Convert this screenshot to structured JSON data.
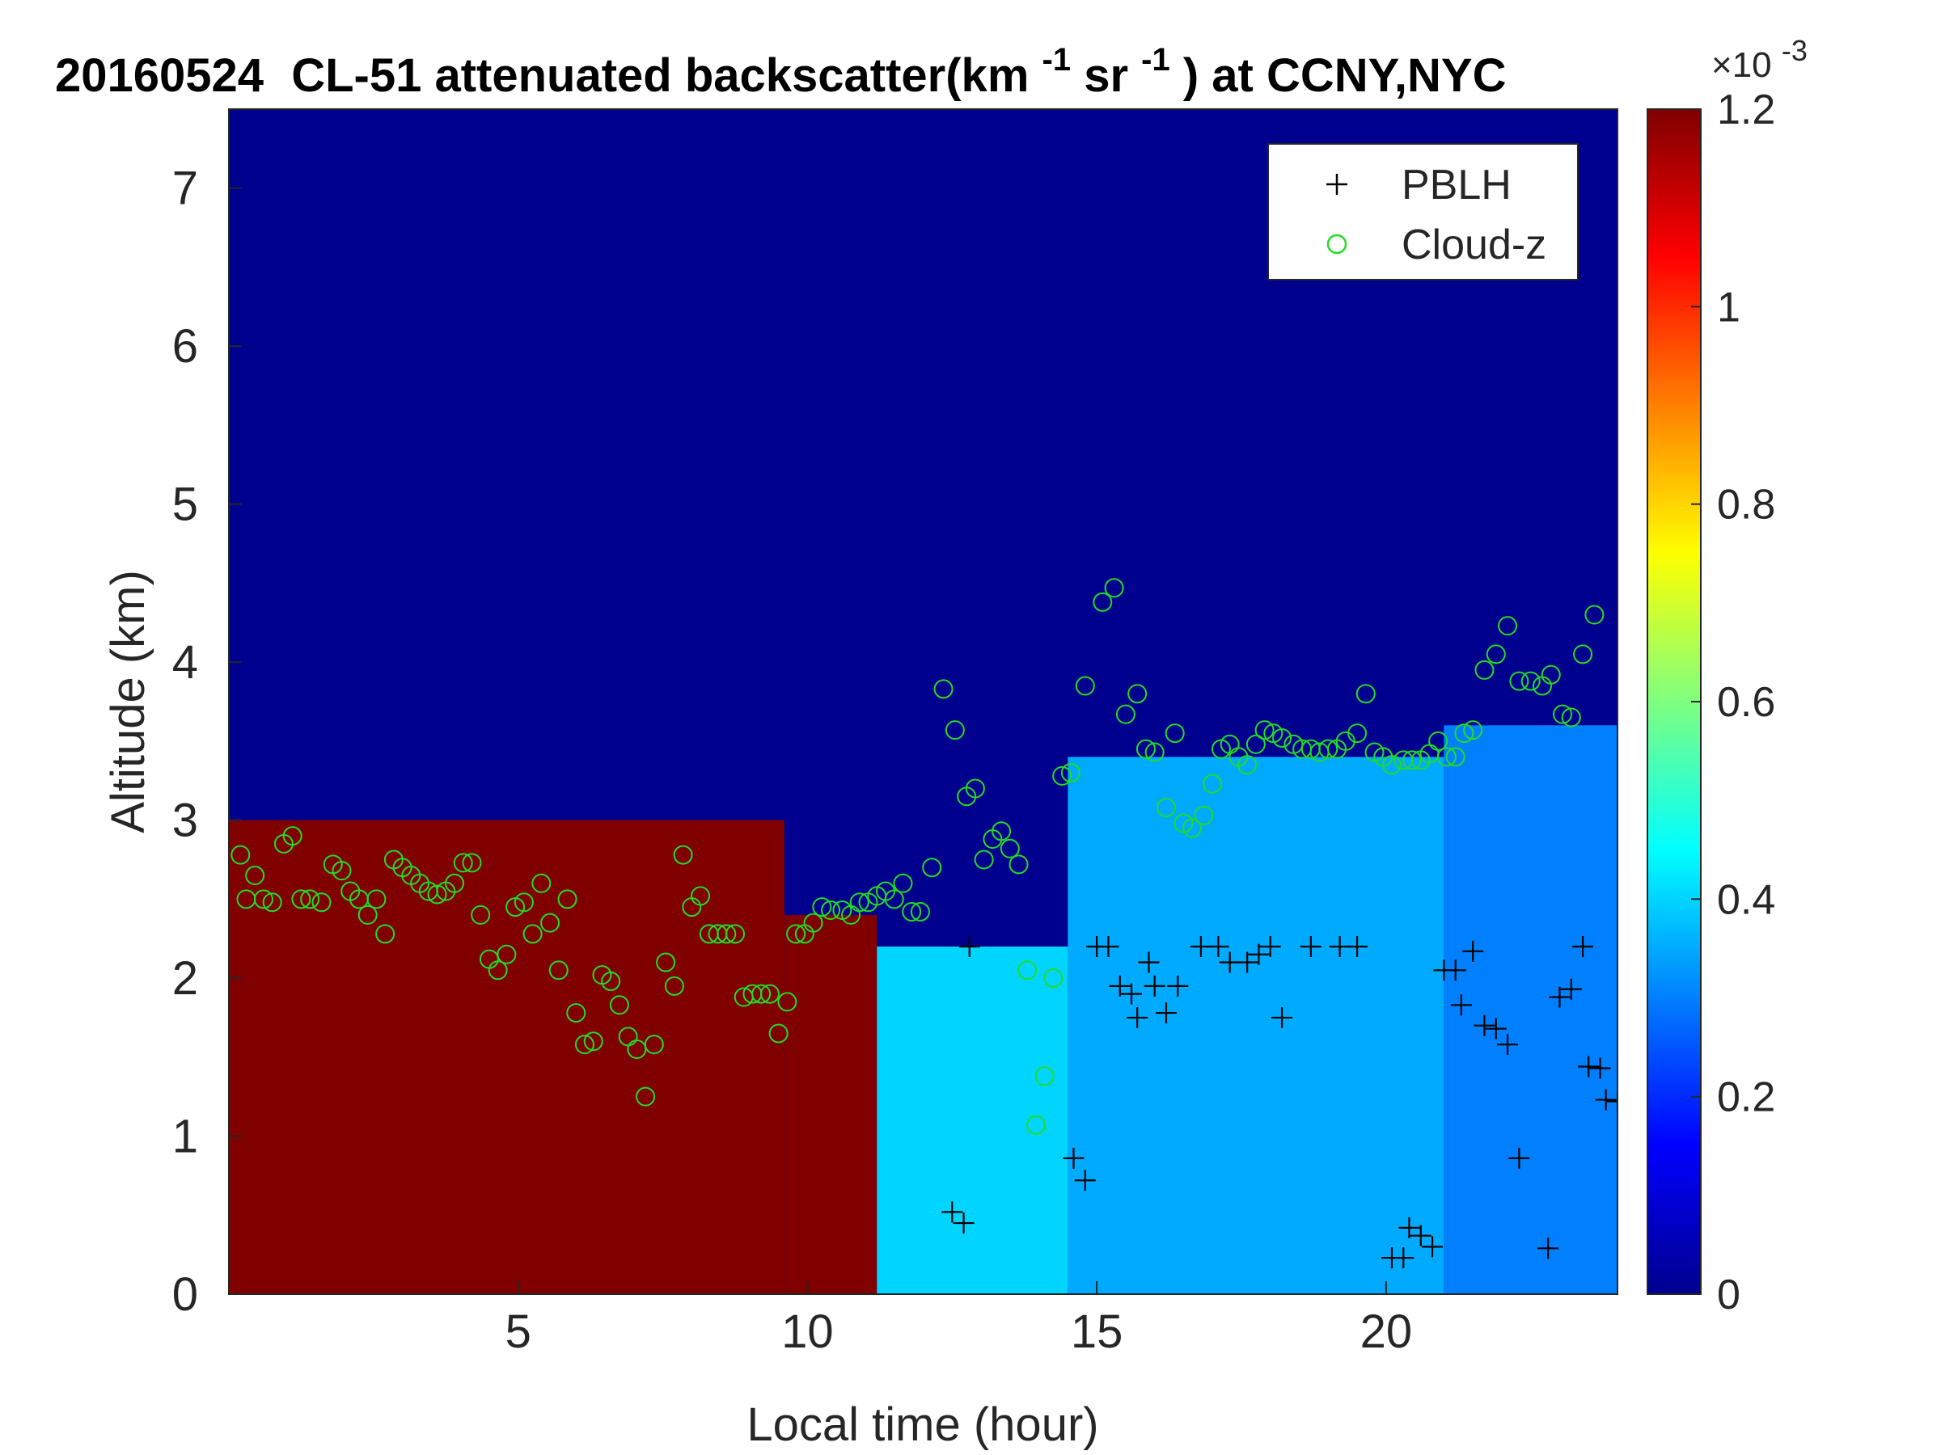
{
  "chart_data": {
    "type": "heatmap",
    "title": {
      "date": "20160524",
      "main": "CL-51 attenuated backscatter(km",
      "sup1": "-1",
      "mid": "sr",
      "sup2": "-1",
      "end": ") at CCNY,NYC"
    },
    "xlabel": "Local time (hour)",
    "ylabel": "Altitude (km)",
    "xlim": [
      0,
      24
    ],
    "ylim": [
      0,
      7.5
    ],
    "xticks": [
      5,
      10,
      15,
      20
    ],
    "yticks": [
      0,
      1,
      2,
      3,
      4,
      5,
      6,
      7
    ],
    "colorbar": {
      "colormap": "jet",
      "range": [
        0,
        1.2
      ],
      "ticks": [
        "0",
        "0.2",
        "0.4",
        "0.6",
        "0.8",
        "1",
        "1.2"
      ],
      "exponent_label": "×10",
      "exponent": "-3"
    },
    "legend": {
      "location": "top-right",
      "entries": [
        {
          "name": "PBLH",
          "marker": "+",
          "color": "#000000"
        },
        {
          "name": "Cloud-z",
          "marker": "o",
          "color": "#22dd22"
        }
      ]
    },
    "colors": {
      "low": "#00008f",
      "high": "#7f0000",
      "mid_cyan": "#34a8ff",
      "pblh_marker": "#000000",
      "cloud_marker": "#22dd22"
    },
    "heatmap_summary": [
      {
        "t_start": 0.0,
        "t_end": 9.6,
        "layer_top_km": 3.0,
        "top_value": 1.2,
        "above_value": 0.05
      },
      {
        "t_start": 9.6,
        "t_end": 11.2,
        "layer_top_km": 2.4,
        "top_value": 1.2,
        "above_value": 0.1
      },
      {
        "t_start": 11.2,
        "t_end": 14.5,
        "layer_top_km": 2.2,
        "top_value": 0.4,
        "above_value": 0.1
      },
      {
        "t_start": 14.5,
        "t_end": 21.0,
        "layer_top_km": 3.4,
        "top_value": 0.35,
        "above_value": 0.1
      },
      {
        "t_start": 21.0,
        "t_end": 24.0,
        "layer_top_km": 3.6,
        "top_value": 0.3,
        "above_value": 0.1
      }
    ],
    "pblh_points": [
      {
        "x": 12.5,
        "y": 0.52
      },
      {
        "x": 12.7,
        "y": 0.45
      },
      {
        "x": 12.8,
        "y": 2.2
      },
      {
        "x": 14.6,
        "y": 0.86
      },
      {
        "x": 14.8,
        "y": 0.72
      },
      {
        "x": 15.0,
        "y": 2.2
      },
      {
        "x": 15.2,
        "y": 2.2
      },
      {
        "x": 15.4,
        "y": 1.95
      },
      {
        "x": 15.6,
        "y": 1.9
      },
      {
        "x": 15.7,
        "y": 1.75
      },
      {
        "x": 15.9,
        "y": 2.1
      },
      {
        "x": 16.0,
        "y": 1.95
      },
      {
        "x": 16.2,
        "y": 1.78
      },
      {
        "x": 16.4,
        "y": 1.95
      },
      {
        "x": 16.8,
        "y": 2.2
      },
      {
        "x": 17.1,
        "y": 2.2
      },
      {
        "x": 17.3,
        "y": 2.1
      },
      {
        "x": 17.6,
        "y": 2.1
      },
      {
        "x": 17.8,
        "y": 2.15
      },
      {
        "x": 18.0,
        "y": 2.2
      },
      {
        "x": 18.2,
        "y": 1.75
      },
      {
        "x": 18.7,
        "y": 2.2
      },
      {
        "x": 19.2,
        "y": 2.2
      },
      {
        "x": 19.5,
        "y": 2.2
      },
      {
        "x": 20.1,
        "y": 0.23
      },
      {
        "x": 20.3,
        "y": 0.23
      },
      {
        "x": 20.4,
        "y": 0.42
      },
      {
        "x": 20.6,
        "y": 0.37
      },
      {
        "x": 20.8,
        "y": 0.3
      },
      {
        "x": 21.0,
        "y": 2.05
      },
      {
        "x": 21.2,
        "y": 2.05
      },
      {
        "x": 21.3,
        "y": 1.83
      },
      {
        "x": 21.5,
        "y": 2.17
      },
      {
        "x": 21.7,
        "y": 1.7
      },
      {
        "x": 21.9,
        "y": 1.68
      },
      {
        "x": 22.1,
        "y": 1.58
      },
      {
        "x": 22.3,
        "y": 0.86
      },
      {
        "x": 22.8,
        "y": 0.29
      },
      {
        "x": 23.0,
        "y": 1.88
      },
      {
        "x": 23.2,
        "y": 1.93
      },
      {
        "x": 23.4,
        "y": 2.2
      },
      {
        "x": 23.5,
        "y": 1.44
      },
      {
        "x": 23.7,
        "y": 1.43
      },
      {
        "x": 23.8,
        "y": 1.23
      },
      {
        "x": 24.0,
        "y": 1.22
      }
    ],
    "cloud_points": [
      {
        "x": 0.2,
        "y": 2.78
      },
      {
        "x": 0.3,
        "y": 2.5
      },
      {
        "x": 0.45,
        "y": 2.65
      },
      {
        "x": 0.6,
        "y": 2.5
      },
      {
        "x": 0.75,
        "y": 2.48
      },
      {
        "x": 0.95,
        "y": 2.85
      },
      {
        "x": 1.1,
        "y": 2.9
      },
      {
        "x": 1.25,
        "y": 2.5
      },
      {
        "x": 1.4,
        "y": 2.5
      },
      {
        "x": 1.6,
        "y": 2.48
      },
      {
        "x": 1.8,
        "y": 2.72
      },
      {
        "x": 1.95,
        "y": 2.68
      },
      {
        "x": 2.1,
        "y": 2.55
      },
      {
        "x": 2.25,
        "y": 2.5
      },
      {
        "x": 2.4,
        "y": 2.4
      },
      {
        "x": 2.55,
        "y": 2.5
      },
      {
        "x": 2.7,
        "y": 2.28
      },
      {
        "x": 2.85,
        "y": 2.75
      },
      {
        "x": 3.0,
        "y": 2.7
      },
      {
        "x": 3.15,
        "y": 2.65
      },
      {
        "x": 3.3,
        "y": 2.6
      },
      {
        "x": 3.45,
        "y": 2.55
      },
      {
        "x": 3.6,
        "y": 2.53
      },
      {
        "x": 3.75,
        "y": 2.55
      },
      {
        "x": 3.9,
        "y": 2.6
      },
      {
        "x": 4.05,
        "y": 2.73
      },
      {
        "x": 4.2,
        "y": 2.73
      },
      {
        "x": 4.35,
        "y": 2.4
      },
      {
        "x": 4.5,
        "y": 2.12
      },
      {
        "x": 4.65,
        "y": 2.05
      },
      {
        "x": 4.8,
        "y": 2.15
      },
      {
        "x": 4.95,
        "y": 2.45
      },
      {
        "x": 5.1,
        "y": 2.48
      },
      {
        "x": 5.25,
        "y": 2.28
      },
      {
        "x": 5.4,
        "y": 2.6
      },
      {
        "x": 5.55,
        "y": 2.35
      },
      {
        "x": 5.7,
        "y": 2.05
      },
      {
        "x": 5.85,
        "y": 2.5
      },
      {
        "x": 6.0,
        "y": 1.78
      },
      {
        "x": 6.15,
        "y": 1.58
      },
      {
        "x": 6.3,
        "y": 1.6
      },
      {
        "x": 6.45,
        "y": 2.02
      },
      {
        "x": 6.6,
        "y": 1.98
      },
      {
        "x": 6.75,
        "y": 1.83
      },
      {
        "x": 6.9,
        "y": 1.63
      },
      {
        "x": 7.05,
        "y": 1.55
      },
      {
        "x": 7.2,
        "y": 1.25
      },
      {
        "x": 7.35,
        "y": 1.58
      },
      {
        "x": 7.55,
        "y": 2.1
      },
      {
        "x": 7.7,
        "y": 1.95
      },
      {
        "x": 7.85,
        "y": 2.78
      },
      {
        "x": 8.0,
        "y": 2.45
      },
      {
        "x": 8.15,
        "y": 2.52
      },
      {
        "x": 8.3,
        "y": 2.28
      },
      {
        "x": 8.45,
        "y": 2.28
      },
      {
        "x": 8.6,
        "y": 2.28
      },
      {
        "x": 8.75,
        "y": 2.28
      },
      {
        "x": 8.9,
        "y": 1.88
      },
      {
        "x": 9.05,
        "y": 1.9
      },
      {
        "x": 9.2,
        "y": 1.9
      },
      {
        "x": 9.35,
        "y": 1.9
      },
      {
        "x": 9.5,
        "y": 1.65
      },
      {
        "x": 9.65,
        "y": 1.85
      },
      {
        "x": 9.8,
        "y": 2.28
      },
      {
        "x": 9.95,
        "y": 2.28
      },
      {
        "x": 10.1,
        "y": 2.35
      },
      {
        "x": 10.25,
        "y": 2.45
      },
      {
        "x": 10.4,
        "y": 2.43
      },
      {
        "x": 10.6,
        "y": 2.43
      },
      {
        "x": 10.75,
        "y": 2.4
      },
      {
        "x": 10.9,
        "y": 2.48
      },
      {
        "x": 11.05,
        "y": 2.48
      },
      {
        "x": 11.2,
        "y": 2.52
      },
      {
        "x": 11.35,
        "y": 2.55
      },
      {
        "x": 11.5,
        "y": 2.5
      },
      {
        "x": 11.65,
        "y": 2.6
      },
      {
        "x": 11.8,
        "y": 2.42
      },
      {
        "x": 11.95,
        "y": 2.42
      },
      {
        "x": 12.15,
        "y": 2.7
      },
      {
        "x": 12.35,
        "y": 3.83
      },
      {
        "x": 12.55,
        "y": 3.57
      },
      {
        "x": 12.75,
        "y": 3.15
      },
      {
        "x": 12.9,
        "y": 3.2
      },
      {
        "x": 13.05,
        "y": 2.75
      },
      {
        "x": 13.2,
        "y": 2.88
      },
      {
        "x": 13.35,
        "y": 2.93
      },
      {
        "x": 13.5,
        "y": 2.82
      },
      {
        "x": 13.65,
        "y": 2.72
      },
      {
        "x": 13.8,
        "y": 2.05
      },
      {
        "x": 13.95,
        "y": 1.07
      },
      {
        "x": 14.1,
        "y": 1.38
      },
      {
        "x": 14.25,
        "y": 2.0
      },
      {
        "x": 14.4,
        "y": 3.28
      },
      {
        "x": 14.55,
        "y": 3.3
      },
      {
        "x": 14.8,
        "y": 3.85
      },
      {
        "x": 15.1,
        "y": 4.38
      },
      {
        "x": 15.3,
        "y": 4.47
      },
      {
        "x": 15.5,
        "y": 3.67
      },
      {
        "x": 15.7,
        "y": 3.8
      },
      {
        "x": 15.85,
        "y": 3.45
      },
      {
        "x": 16.0,
        "y": 3.43
      },
      {
        "x": 16.2,
        "y": 3.08
      },
      {
        "x": 16.35,
        "y": 3.55
      },
      {
        "x": 16.5,
        "y": 2.98
      },
      {
        "x": 16.65,
        "y": 2.95
      },
      {
        "x": 16.85,
        "y": 3.03
      },
      {
        "x": 17.0,
        "y": 3.23
      },
      {
        "x": 17.15,
        "y": 3.45
      },
      {
        "x": 17.3,
        "y": 3.48
      },
      {
        "x": 17.45,
        "y": 3.4
      },
      {
        "x": 17.6,
        "y": 3.35
      },
      {
        "x": 17.75,
        "y": 3.48
      },
      {
        "x": 17.9,
        "y": 3.57
      },
      {
        "x": 18.05,
        "y": 3.55
      },
      {
        "x": 18.2,
        "y": 3.52
      },
      {
        "x": 18.4,
        "y": 3.48
      },
      {
        "x": 18.55,
        "y": 3.45
      },
      {
        "x": 18.7,
        "y": 3.45
      },
      {
        "x": 18.85,
        "y": 3.43
      },
      {
        "x": 19.0,
        "y": 3.45
      },
      {
        "x": 19.15,
        "y": 3.45
      },
      {
        "x": 19.3,
        "y": 3.5
      },
      {
        "x": 19.5,
        "y": 3.55
      },
      {
        "x": 19.65,
        "y": 3.8
      },
      {
        "x": 19.8,
        "y": 3.43
      },
      {
        "x": 19.95,
        "y": 3.4
      },
      {
        "x": 20.1,
        "y": 3.35
      },
      {
        "x": 20.3,
        "y": 3.38
      },
      {
        "x": 20.45,
        "y": 3.38
      },
      {
        "x": 20.6,
        "y": 3.38
      },
      {
        "x": 20.75,
        "y": 3.42
      },
      {
        "x": 20.9,
        "y": 3.5
      },
      {
        "x": 21.05,
        "y": 3.4
      },
      {
        "x": 21.2,
        "y": 3.4
      },
      {
        "x": 21.35,
        "y": 3.55
      },
      {
        "x": 21.5,
        "y": 3.57
      },
      {
        "x": 21.7,
        "y": 3.95
      },
      {
        "x": 21.9,
        "y": 4.05
      },
      {
        "x": 22.1,
        "y": 4.23
      },
      {
        "x": 22.3,
        "y": 3.88
      },
      {
        "x": 22.5,
        "y": 3.88
      },
      {
        "x": 22.7,
        "y": 3.85
      },
      {
        "x": 22.85,
        "y": 3.92
      },
      {
        "x": 23.05,
        "y": 3.67
      },
      {
        "x": 23.2,
        "y": 3.65
      },
      {
        "x": 23.4,
        "y": 4.05
      },
      {
        "x": 23.6,
        "y": 4.3
      }
    ]
  }
}
